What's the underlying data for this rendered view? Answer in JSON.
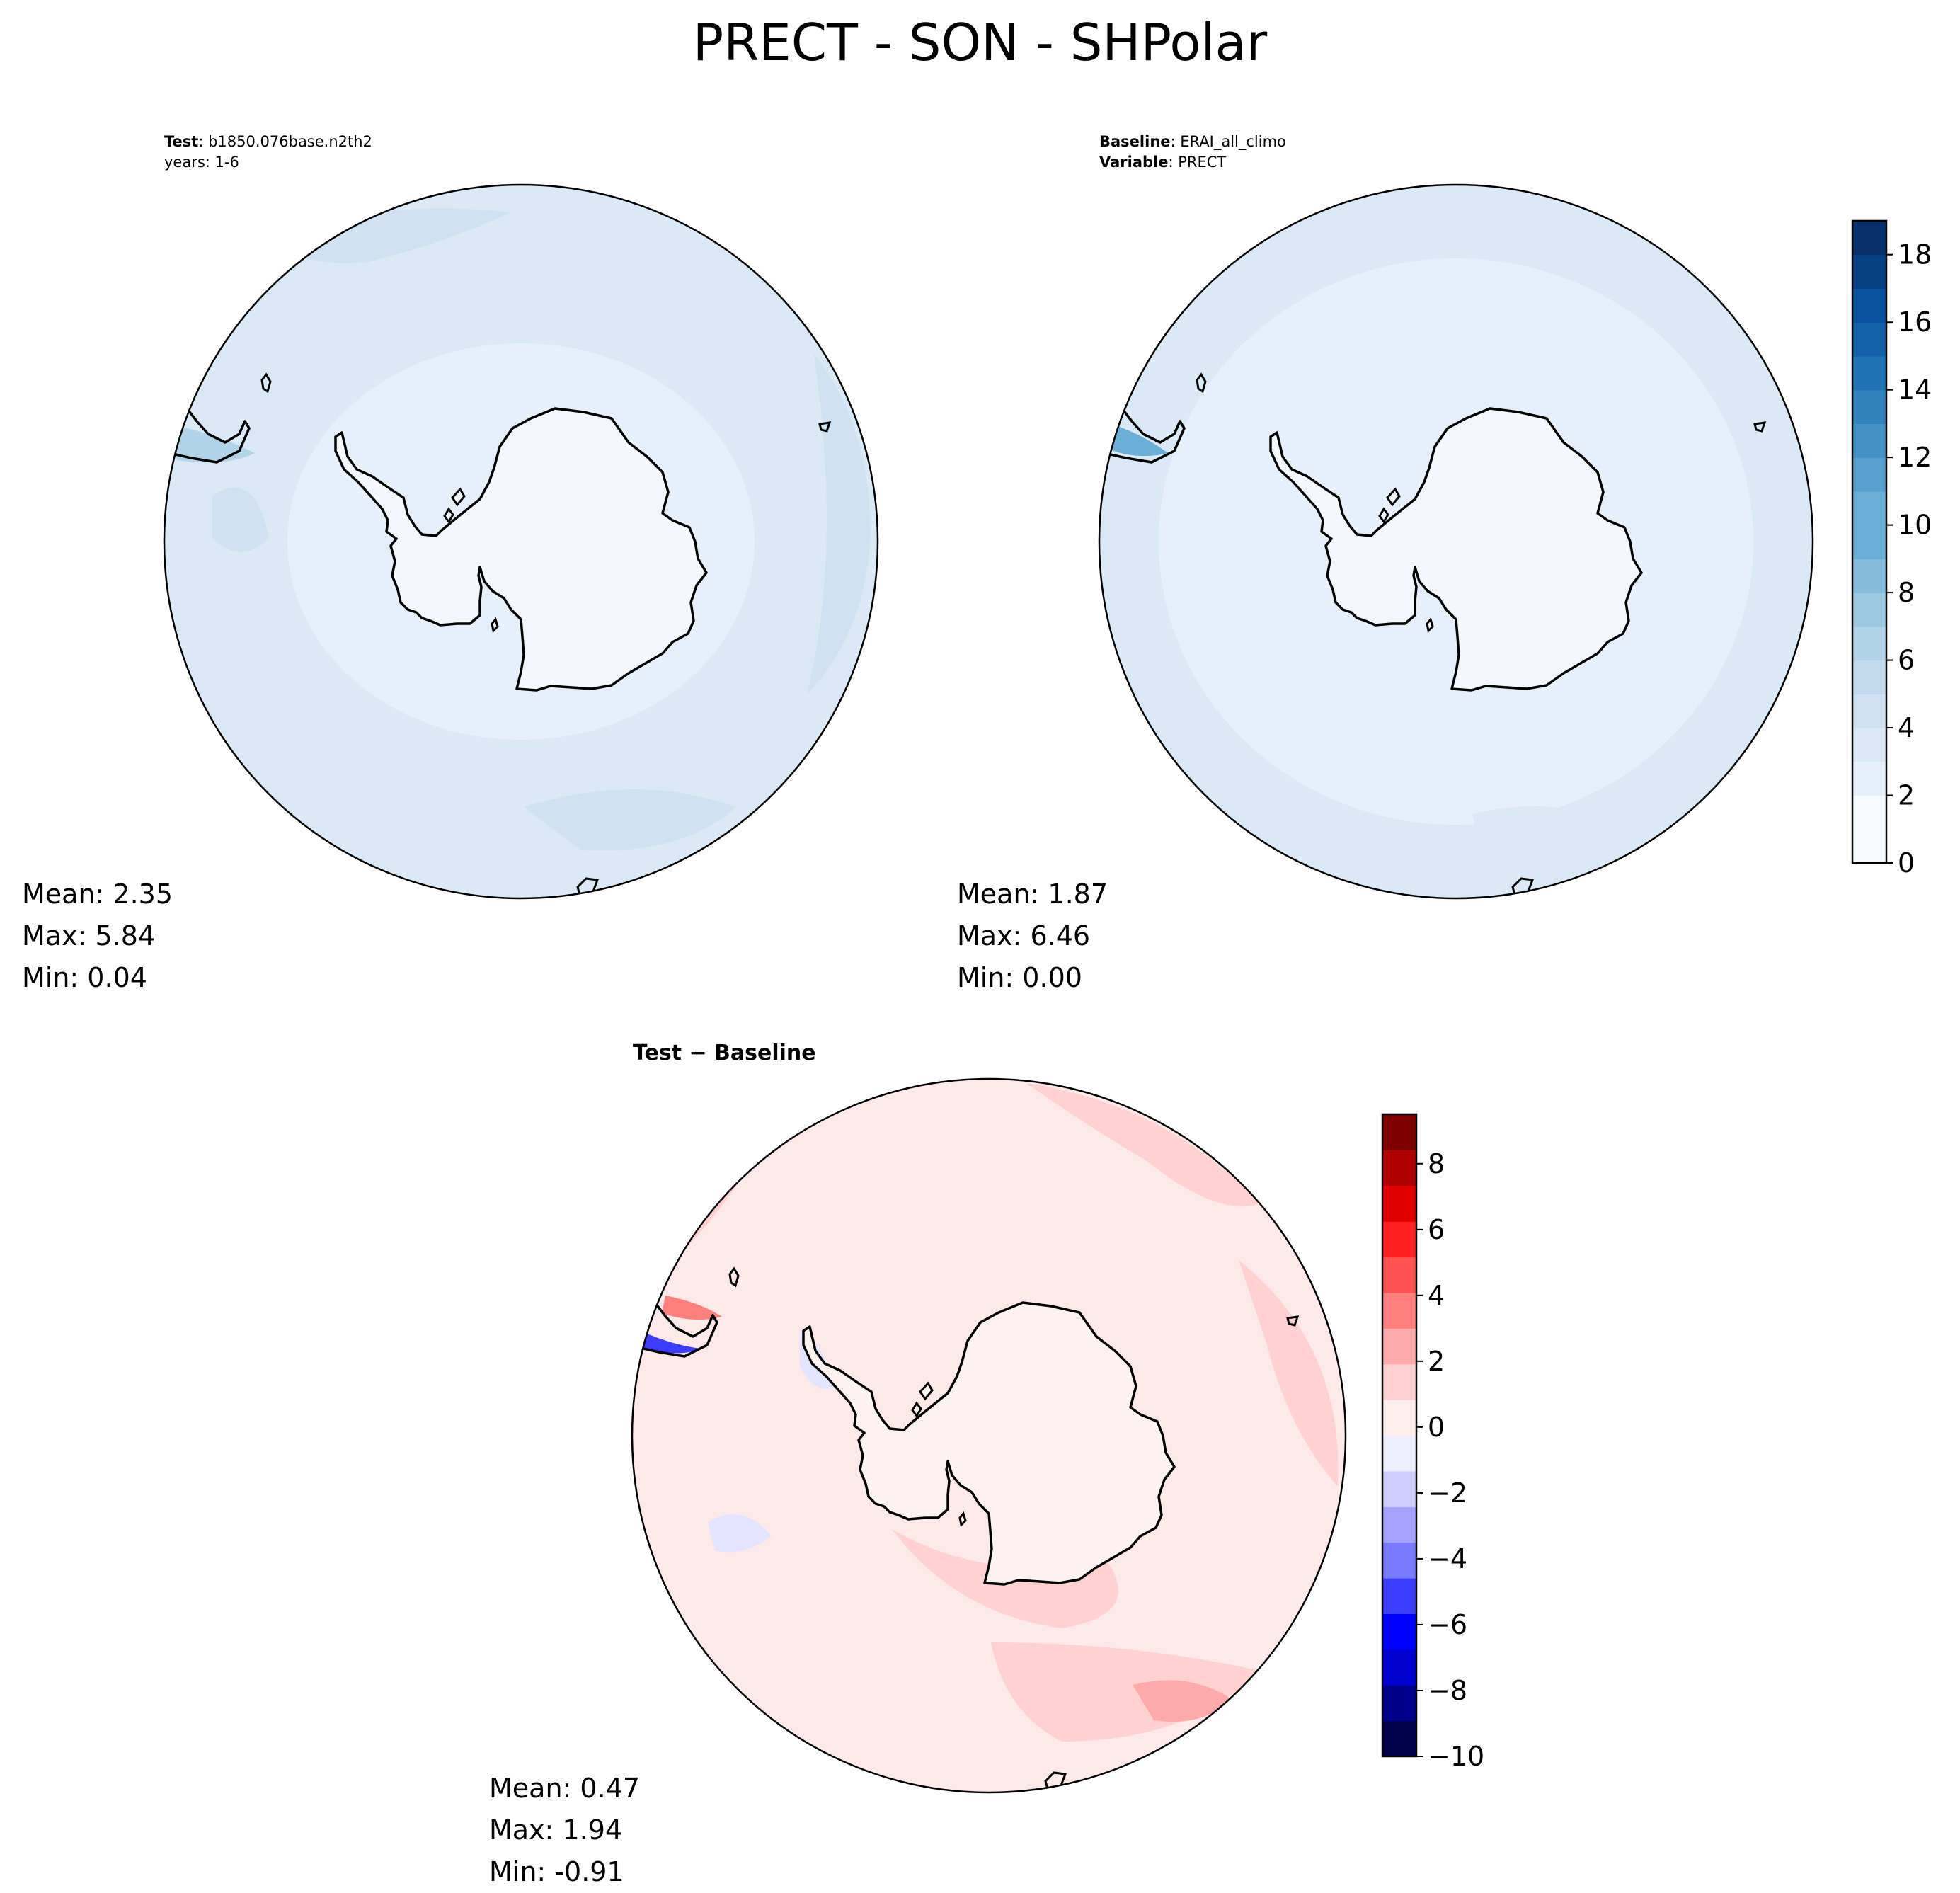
{
  "figure": {
    "title": "PRECT - SON - SHPolar"
  },
  "test_panel": {
    "label_key": "Test",
    "label_value": ": b1850.076base.n2th2",
    "years": "years: 1-6",
    "stats": {
      "mean": "Mean:  2.35",
      "max": "Max:  5.84",
      "min": "Min:  0.04"
    }
  },
  "baseline_panel": {
    "label_key": "Baseline",
    "label_value": ": ERAI_all_climo",
    "variable_key": "Variable",
    "variable_value": ": PRECT",
    "stats": {
      "mean": "Mean:  1.87",
      "max": "Max:  6.46",
      "min": "Min:  0.00"
    }
  },
  "diff_panel": {
    "title": "Test − Baseline",
    "stats": {
      "mean": "Mean:  0.47",
      "max": "Max:  1.94",
      "min": "Min: -0.91"
    }
  },
  "colors": {
    "blues": [
      "#f7fbff",
      "#e7f0fa",
      "#dbe9f6",
      "#d0e1f2",
      "#c4daee",
      "#b3d3e8",
      "#9ecae1",
      "#86bcdc",
      "#6baed6",
      "#57a0ce",
      "#4292c6",
      "#3181bd",
      "#2171b5",
      "#1361a9",
      "#08519c",
      "#084084",
      "#08306b"
    ],
    "bwr": [
      "#00004d",
      "#00008b",
      "#0000d0",
      "#0000ff",
      "#3d3dff",
      "#7a7aff",
      "#a3a3ff",
      "#cfcfff",
      "#eeeeff",
      "#ffeeee",
      "#ffd2d2",
      "#ffaaaa",
      "#ff7e7e",
      "#ff5252",
      "#ff2020",
      "#e00000",
      "#b00000",
      "#800000"
    ],
    "test_field_base": "#dbe9f6",
    "baseline_field_base": "#e7f0fa",
    "antarctica_fill": "#f4f8fd",
    "diff_field_base": "#fde9e9"
  },
  "chart_data": [
    {
      "type": "heatmap",
      "panel": "test",
      "projection": "south-polar stereographic",
      "field": "PRECT",
      "colorbar": "none (shares baseline colorbar)",
      "stats": {
        "mean": 2.35,
        "max": 5.84,
        "min": 0.04
      }
    },
    {
      "type": "heatmap",
      "panel": "baseline",
      "projection": "south-polar stereographic",
      "field": "PRECT",
      "colorbar": {
        "cmap": "Blues",
        "range": [
          0,
          19
        ],
        "levels": [
          0,
          1,
          2,
          3,
          4,
          5,
          6,
          7,
          8,
          9,
          10,
          11,
          12,
          13,
          14,
          15,
          16,
          17,
          18,
          19
        ],
        "ticks": [
          0,
          2,
          4,
          6,
          8,
          10,
          12,
          14,
          16,
          18
        ],
        "tick_labels": [
          "0",
          "2",
          "4",
          "6",
          "8",
          "10",
          "12",
          "14",
          "16",
          "18"
        ]
      },
      "stats": {
        "mean": 1.87,
        "max": 6.46,
        "min": 0.0
      }
    },
    {
      "type": "heatmap",
      "panel": "difference",
      "projection": "south-polar stereographic",
      "field": "PRECT (Test − Baseline)",
      "colorbar": {
        "cmap": "seismic",
        "range": [
          -10,
          9.5
        ],
        "ticks": [
          -10,
          -8,
          -6,
          -4,
          -2,
          0,
          2,
          4,
          6,
          8
        ],
        "tick_labels": [
          "−10",
          "−8",
          "−6",
          "−4",
          "−2",
          "0",
          "2",
          "4",
          "6",
          "8"
        ]
      },
      "stats": {
        "mean": 0.47,
        "max": 1.94,
        "min": -0.91
      }
    }
  ]
}
